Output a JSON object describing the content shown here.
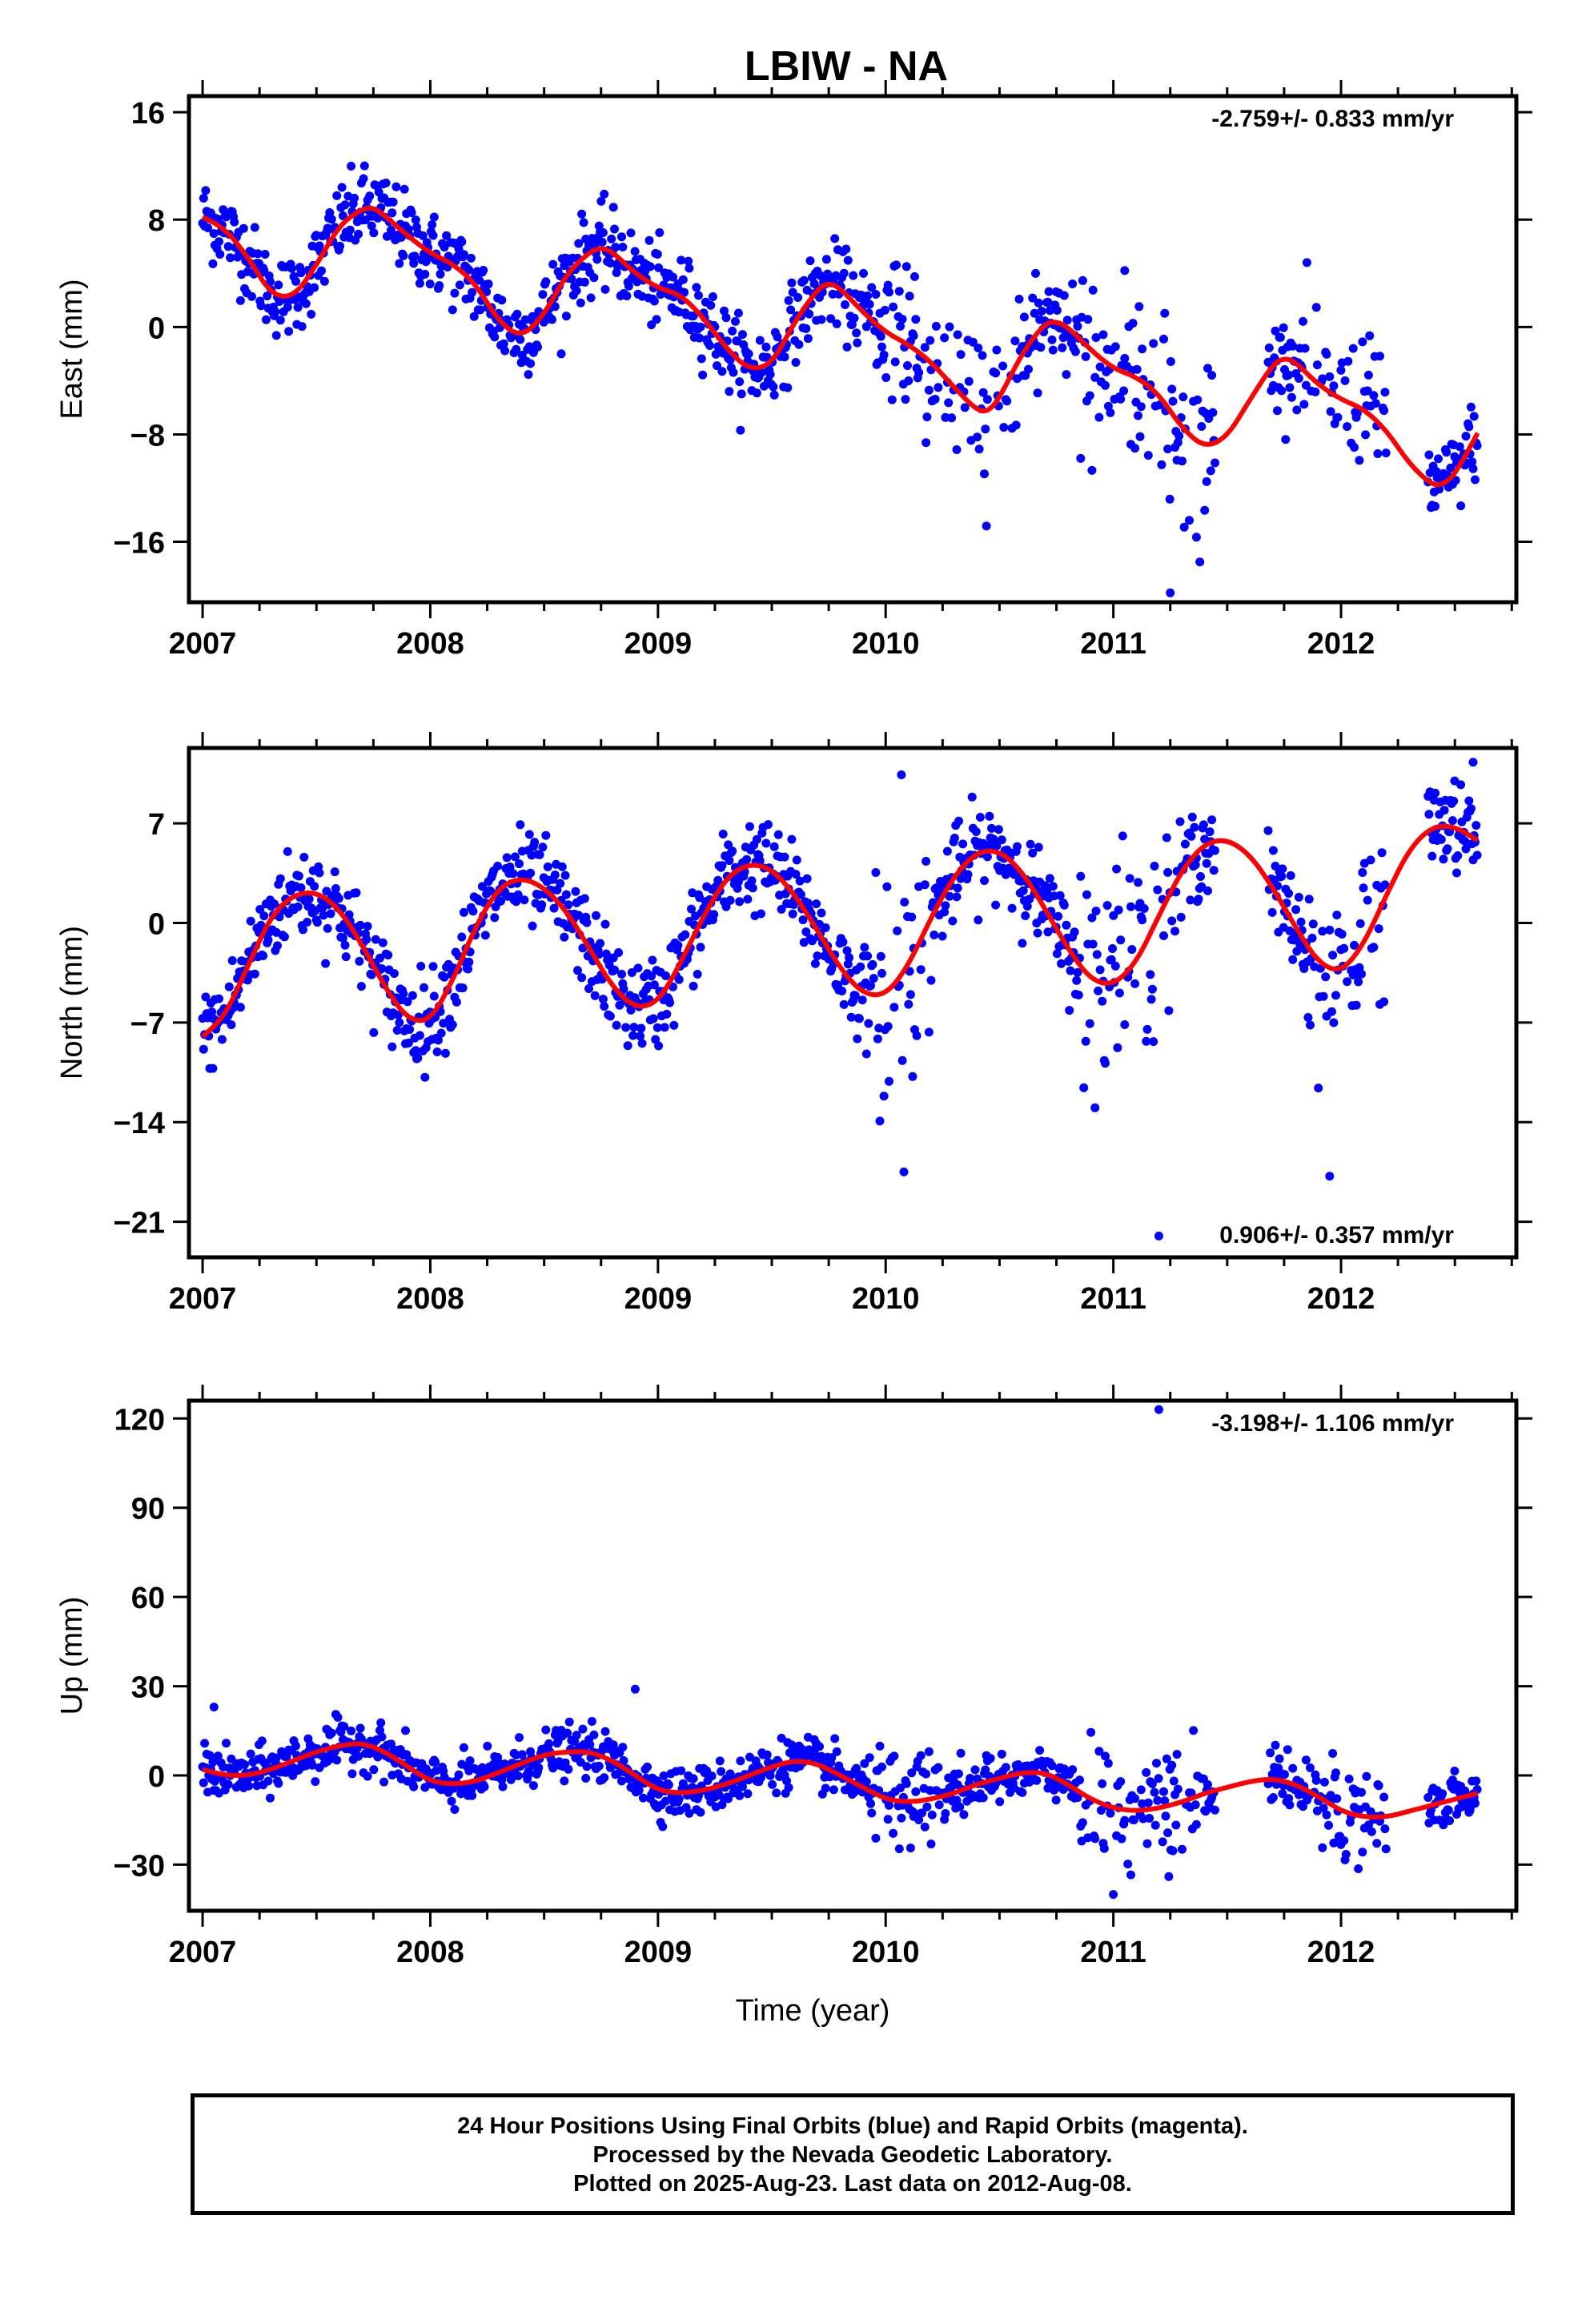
{
  "title": "LBIW - NA",
  "chart_data": [
    {
      "type": "scatter",
      "id": "east",
      "ylabel": "East (mm)",
      "xlabel": "",
      "xlim": [
        2006.94,
        2012.77
      ],
      "ylim": [
        -20.5,
        17.2
      ],
      "xticks": [
        2007,
        2008,
        2009,
        2010,
        2011,
        2012
      ],
      "xtick_labels": [
        "2007",
        "2008",
        "2009",
        "2010",
        "2011",
        "2012"
      ],
      "yticks": [
        16,
        8,
        0,
        -8,
        -16
      ],
      "ytick_labels": [
        "16",
        "8",
        "0",
        "−8",
        "−16"
      ],
      "rate_text": "-2.759+/- 0.833 mm/yr",
      "rate_position": "top-right",
      "points_color": "#0000ff",
      "model_color": "#ff0000",
      "model_curve": {
        "x": [
          2007.0,
          2007.1,
          2007.2,
          2007.3,
          2007.4,
          2007.5,
          2007.6,
          2007.7,
          2007.75,
          2007.8,
          2007.9,
          2008.0,
          2008.1,
          2008.2,
          2008.3,
          2008.4,
          2008.5,
          2008.6,
          2008.7,
          2008.75,
          2008.8,
          2008.9,
          2009.0,
          2009.1,
          2009.2,
          2009.3,
          2009.4,
          2009.5,
          2009.6,
          2009.7,
          2009.75,
          2009.8,
          2009.9,
          2010.0,
          2010.1,
          2010.2,
          2010.3,
          2010.4,
          2010.45,
          2010.5,
          2010.6,
          2010.7,
          2010.75,
          2010.8,
          2010.9,
          2011.0,
          2011.1,
          2011.2,
          2011.3,
          2011.4,
          2011.5,
          2011.6,
          2011.7,
          2011.75,
          2011.8,
          2011.9,
          2012.0,
          2012.1,
          2012.2,
          2012.3,
          2012.4,
          2012.45,
          2012.5,
          2012.6
        ],
        "y": [
          8.2,
          7.3,
          5.2,
          2.4,
          2.2,
          4.6,
          7.6,
          8.8,
          8.9,
          8.3,
          6.8,
          5.5,
          4.7,
          3.2,
          0.4,
          -0.8,
          0.9,
          4.0,
          5.6,
          5.9,
          5.6,
          4.0,
          2.9,
          2.4,
          0.7,
          -1.6,
          -3.2,
          -2.8,
          0.4,
          2.8,
          3.3,
          2.9,
          1.1,
          -0.4,
          -1.3,
          -2.6,
          -4.5,
          -6.2,
          -6.3,
          -5.3,
          -1.9,
          0.3,
          0.4,
          0.0,
          -1.7,
          -3.1,
          -3.7,
          -5.0,
          -7.5,
          -9.0,
          -8.2,
          -5.4,
          -2.8,
          -2.3,
          -2.6,
          -4.3,
          -5.4,
          -6.1,
          -7.7,
          -10.2,
          -11.8,
          -11.7,
          -11.0,
          -7.9
        ]
      },
      "scatter_spec": {
        "spread": 1.5,
        "extra_noise_periods": [
          [
            2010.0,
            2010.6,
            3.0
          ],
          [
            2010.85,
            2011.45,
            3.5
          ],
          [
            2011.85,
            2012.2,
            2.5
          ]
        ],
        "gaps": [
          [
            2011.45,
            2011.68
          ],
          [
            2012.2,
            2012.38
          ]
        ],
        "outliers": [
          [
            2011.25,
            -19.8
          ],
          [
            2011.38,
            -17.5
          ],
          [
            2011.05,
            4.2
          ],
          [
            2011.85,
            4.8
          ]
        ]
      }
    },
    {
      "type": "scatter",
      "id": "north",
      "ylabel": "North (mm)",
      "xlabel": "",
      "xlim": [
        2006.94,
        2012.77
      ],
      "ylim": [
        -23.5,
        12.3
      ],
      "xticks": [
        2007,
        2008,
        2009,
        2010,
        2011,
        2012
      ],
      "xtick_labels": [
        "2007",
        "2008",
        "2009",
        "2010",
        "2011",
        "2012"
      ],
      "yticks": [
        7,
        0,
        -7,
        -14,
        -21
      ],
      "ytick_labels": [
        "7",
        "0",
        "−7",
        "−14",
        "−21"
      ],
      "rate_text": "0.906+/- 0.357 mm/yr",
      "rate_position": "bottom-right",
      "points_color": "#0000ff",
      "model_color": "#ff0000",
      "model_curve": {
        "x": [
          2007.0,
          2007.1,
          2007.2,
          2007.3,
          2007.4,
          2007.5,
          2007.6,
          2007.7,
          2007.8,
          2007.9,
          2008.0,
          2008.1,
          2008.2,
          2008.3,
          2008.4,
          2008.5,
          2008.6,
          2008.7,
          2008.8,
          2008.9,
          2009.0,
          2009.1,
          2009.2,
          2009.3,
          2009.4,
          2009.5,
          2009.6,
          2009.7,
          2009.8,
          2009.9,
          2010.0,
          2010.1,
          2010.2,
          2010.3,
          2010.4,
          2010.5,
          2010.6,
          2010.7,
          2010.8,
          2010.9,
          2011.0,
          2011.1,
          2011.2,
          2011.3,
          2011.4,
          2011.5,
          2011.6,
          2011.7,
          2011.8,
          2011.9,
          2012.0,
          2012.1,
          2012.2,
          2012.3,
          2012.4,
          2012.5,
          2012.6
        ],
        "y": [
          -8.0,
          -6.5,
          -3.0,
          0.5,
          2.0,
          2.2,
          1.0,
          -1.5,
          -4.5,
          -6.8,
          -6.9,
          -4.0,
          -0.2,
          2.5,
          3.2,
          2.5,
          0.8,
          -1.8,
          -4.5,
          -6.0,
          -5.6,
          -2.8,
          0.5,
          3.2,
          4.2,
          3.8,
          2.0,
          -0.5,
          -3.2,
          -5.0,
          -5.1,
          -3.0,
          0.4,
          3.3,
          5.0,
          5.1,
          3.6,
          1.0,
          -1.8,
          -4.0,
          -4.4,
          -2.8,
          0.5,
          3.7,
          5.6,
          5.9,
          4.8,
          2.5,
          -0.3,
          -2.8,
          -3.5,
          -1.5,
          2.0,
          5.2,
          6.8,
          6.8,
          5.8
        ]
      },
      "scatter_spec": {
        "spread": 1.6,
        "extra_noise_periods": [
          [
            2009.95,
            2010.2,
            4.0
          ],
          [
            2010.85,
            2011.3,
            4.0
          ],
          [
            2011.85,
            2012.2,
            3.0
          ]
        ],
        "gaps": [
          [
            2011.45,
            2011.68
          ],
          [
            2012.2,
            2012.38
          ]
        ],
        "outliers": [
          [
            2011.2,
            -22.0
          ],
          [
            2012.58,
            11.3
          ],
          [
            2010.08,
            -17.5
          ],
          [
            2011.95,
            -17.8
          ]
        ]
      }
    },
    {
      "type": "scatter",
      "id": "up",
      "ylabel": "Up (mm)",
      "xlabel": "Time (year)",
      "xlim": [
        2006.94,
        2012.77
      ],
      "ylim": [
        -45.5,
        126
      ],
      "xticks": [
        2007,
        2008,
        2009,
        2010,
        2011,
        2012
      ],
      "xtick_labels": [
        "2007",
        "2008",
        "2009",
        "2010",
        "2011",
        "2012"
      ],
      "yticks": [
        120,
        90,
        60,
        30,
        0,
        -30
      ],
      "ytick_labels": [
        "120",
        "90",
        "60",
        "30",
        "0",
        "−30"
      ],
      "rate_text": "-3.198+/- 1.106 mm/yr",
      "rate_position": "top-right",
      "points_color": "#0000ff",
      "model_color": "#ff0000",
      "model_curve": {
        "x": [
          2007.0,
          2007.1,
          2007.2,
          2007.3,
          2007.4,
          2007.5,
          2007.6,
          2007.7,
          2007.8,
          2007.9,
          2008.0,
          2008.1,
          2008.2,
          2008.3,
          2008.4,
          2008.5,
          2008.6,
          2008.7,
          2008.8,
          2008.9,
          2009.0,
          2009.1,
          2009.2,
          2009.3,
          2009.4,
          2009.5,
          2009.6,
          2009.7,
          2009.8,
          2009.9,
          2010.0,
          2010.1,
          2010.2,
          2010.3,
          2010.4,
          2010.5,
          2010.6,
          2010.7,
          2010.8,
          2010.9,
          2011.0,
          2011.1,
          2011.2,
          2011.3,
          2011.4,
          2011.5,
          2011.6,
          2011.7,
          2011.8,
          2011.9,
          2012.0,
          2012.1,
          2012.2,
          2012.3,
          2012.4,
          2012.5,
          2012.6
        ],
        "y": [
          2,
          0,
          0,
          2,
          5,
          8,
          10,
          11,
          8,
          3,
          -2,
          -3,
          -2,
          1,
          4,
          7,
          8,
          8,
          5,
          0,
          -5,
          -6,
          -5,
          -3,
          0,
          3,
          5,
          4,
          0,
          -4,
          -8,
          -9,
          -8,
          -6,
          -3,
          -1,
          1,
          1,
          -3,
          -8,
          -11,
          -12,
          -11,
          -9,
          -6,
          -4,
          -2,
          -1,
          -3,
          -7,
          -12,
          -14,
          -14,
          -12,
          -10,
          -8,
          -6
        ]
      },
      "scatter_spec": {
        "spread": 4.0,
        "extra_noise_periods": [
          [
            2009.95,
            2010.25,
            8.0
          ],
          [
            2010.85,
            2011.4,
            9.0
          ],
          [
            2011.85,
            2012.2,
            7.0
          ]
        ],
        "gaps": [
          [
            2011.45,
            2011.68
          ],
          [
            2012.2,
            2012.38
          ]
        ],
        "outliers": [
          [
            2011.2,
            123
          ],
          [
            2008.9,
            29
          ],
          [
            2007.05,
            23
          ],
          [
            2011.0,
            -40
          ]
        ]
      }
    }
  ],
  "footer": {
    "line1": "24 Hour Positions Using Final Orbits (blue) and Rapid Orbits (magenta).",
    "line2": "Processed by the Nevada Geodetic Laboratory.",
    "line3": "Plotted on 2025-Aug-23. Last data on 2012-Aug-08."
  }
}
